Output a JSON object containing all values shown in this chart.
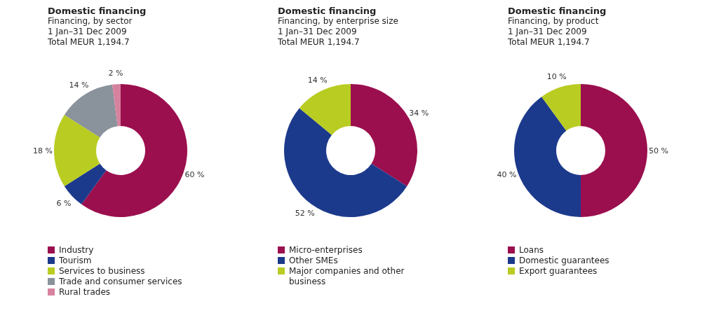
{
  "chart_data": [
    {
      "type": "donut",
      "title": "Domestic financing",
      "subtitle": "Financing, by sector\n1 Jan–31 Dec 2009\nTotal MEUR 1,194.7",
      "categories": [
        "Industry",
        "Tourism",
        "Services to business",
        "Trade and consumer services",
        "Rural trades"
      ],
      "values": [
        60,
        6,
        18,
        14,
        2
      ],
      "value_labels": [
        "60 %",
        "6 %",
        "18 %",
        "14 %",
        "2 %"
      ],
      "colors": [
        "#9b0f4e",
        "#1c3a8c",
        "#b9cc22",
        "#8a929c",
        "#d6829e"
      ],
      "legend": "bottom"
    },
    {
      "type": "donut",
      "title": "Domestic financing",
      "subtitle": "Financing, by enterprise size\n1 Jan–31 Dec 2009\nTotal MEUR 1,194.7",
      "categories": [
        "Micro-enterprises",
        "Other SMEs",
        "Major companies and other business"
      ],
      "values": [
        34,
        52,
        14
      ],
      "value_labels": [
        "34 %",
        "52 %",
        "14 %"
      ],
      "colors": [
        "#9b0f4e",
        "#1c3a8c",
        "#b9cc22"
      ],
      "legend": "bottom"
    },
    {
      "type": "donut",
      "title": "Domestic financing",
      "subtitle": "Financing, by product\n1 Jan–31 Dec 2009\nTotal MEUR 1,194.7",
      "categories": [
        "Loans",
        "Domestic guarantees",
        "Export guarantees"
      ],
      "values": [
        50,
        40,
        10
      ],
      "value_labels": [
        "50 %",
        "40 %",
        "10 %"
      ],
      "colors": [
        "#9b0f4e",
        "#1c3a8c",
        "#b9cc22"
      ],
      "legend": "bottom"
    }
  ]
}
